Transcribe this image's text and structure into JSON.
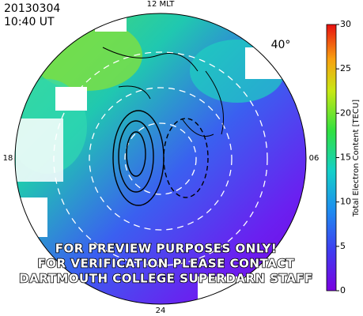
{
  "header": {
    "date": "20130304",
    "time": "10:40 UT"
  },
  "map": {
    "top_label": "12 MLT",
    "left_label": "18",
    "right_label": "06",
    "bottom_label": "24",
    "latitude_label": "40°"
  },
  "colorbar": {
    "label": "Total Electron Content [TECU]",
    "lim": [
      0,
      30
    ],
    "ticks": [
      0,
      5,
      10,
      15,
      20,
      25,
      30
    ]
  },
  "watermark": [
    "FOR PREVIEW PURPOSES ONLY!",
    "FOR VERIFICATION PLEASE CONTACT",
    "DARTMOUTH COLLEGE SUPERDARN STAFF"
  ]
}
